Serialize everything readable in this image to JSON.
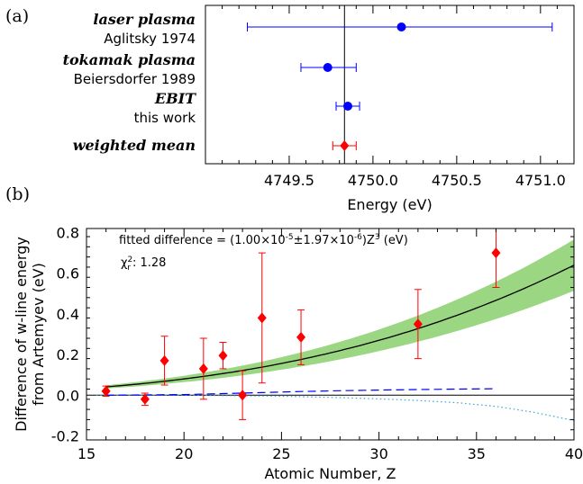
{
  "chart_data": [
    {
      "type": "scatter",
      "panel_label": "(a)",
      "xlabel": "Energy (eV)",
      "xlim": [
        4749.0,
        4751.2
      ],
      "xticks": [
        4749.5,
        4750.0,
        4750.5,
        4751.0
      ],
      "xtick_labels": [
        "4749.5",
        "4750.0",
        "4750.5",
        "4751.0"
      ],
      "reference_line_x": 4749.83,
      "points": [
        {
          "label": "laser plasma",
          "sublabel": "Aglitsky 1974",
          "x": 4750.17,
          "xerr_low": 4749.25,
          "xerr_high": 4751.07,
          "color": "#0000ff",
          "marker": "circle"
        },
        {
          "label": "tokamak plasma",
          "sublabel": "Beiersdorfer 1989",
          "x": 4749.73,
          "xerr_low": 4749.57,
          "xerr_high": 4749.9,
          "color": "#0000ff",
          "marker": "circle"
        },
        {
          "label": "EBIT",
          "sublabel": "this work",
          "x": 4749.85,
          "xerr_low": 4749.78,
          "xerr_high": 4749.92,
          "color": "#0000ff",
          "marker": "circle"
        },
        {
          "label": "weighted mean",
          "sublabel": "",
          "x": 4749.83,
          "xerr_low": 4749.76,
          "xerr_high": 4749.9,
          "color": "#ff0000",
          "marker": "diamond"
        }
      ]
    },
    {
      "type": "scatter",
      "panel_label": "(b)",
      "xlabel": "Atomic Number, Z",
      "ylabel": "Difference of w-line energy",
      "ylabel2": "from Artemyev (eV)",
      "xlim": [
        15,
        40
      ],
      "ylim": [
        -0.22,
        0.82
      ],
      "xticks": [
        15,
        20,
        25,
        30,
        35,
        40
      ],
      "yticks": [
        -0.2,
        0.0,
        0.2,
        0.4,
        0.6,
        0.8
      ],
      "ytick_labels": [
        "-0.2",
        "0.0",
        "0.2",
        "0.4",
        "0.6",
        "0.8"
      ],
      "annotation_fit_prefix": "fitted difference = (1.00×10",
      "annotation_fit_exp1": "-5",
      "annotation_fit_mid": "±1.97×10",
      "annotation_fit_exp2": "-6",
      "annotation_fit_suffix": ")Z",
      "annotation_fit_exp3": "3",
      "annotation_fit_units": " (eV)",
      "annotation_chi_symbol": "χ",
      "annotation_chi_sup": "2",
      "annotation_chi_sub": "r",
      "annotation_chi_value": ": 1.28",
      "fit_coefficient": 1e-05,
      "fit_coefficient_err": 1.97e-06,
      "fit_color": "#000000",
      "band_color": "#9bd683",
      "measurements": [
        {
          "z": 16,
          "y": 0.02,
          "err": 0.025
        },
        {
          "z": 18,
          "y": -0.02,
          "err": 0.03
        },
        {
          "z": 19,
          "y": 0.17,
          "err": 0.12
        },
        {
          "z": 21,
          "y": 0.13,
          "err": 0.15
        },
        {
          "z": 22,
          "y": 0.195,
          "err": 0.065
        },
        {
          "z": 23,
          "y": 0.0,
          "err": 0.12
        },
        {
          "z": 24,
          "y": 0.38,
          "err": 0.32
        },
        {
          "z": 26,
          "y": 0.285,
          "err": 0.135
        },
        {
          "z": 32,
          "y": 0.35,
          "err": 0.17
        },
        {
          "z": 36,
          "y": 0.7,
          "err": 0.17
        }
      ],
      "measurement_color": "#ff0000",
      "dashed_line": {
        "x": [
          16,
          20,
          22,
          24,
          26,
          28,
          30,
          32,
          34,
          36
        ],
        "y": [
          0.0,
          0.003,
          0.008,
          0.013,
          0.018,
          0.022,
          0.025,
          0.028,
          0.03,
          0.032
        ],
        "color": "#0000ff"
      },
      "dotted_line": {
        "x": [
          15.5,
          20,
          25,
          28,
          30,
          32,
          34,
          36,
          38,
          40
        ],
        "y": [
          0.0,
          0.0,
          -0.005,
          -0.012,
          -0.018,
          -0.026,
          -0.037,
          -0.055,
          -0.085,
          -0.125
        ],
        "color": "#33a6d6"
      }
    }
  ]
}
